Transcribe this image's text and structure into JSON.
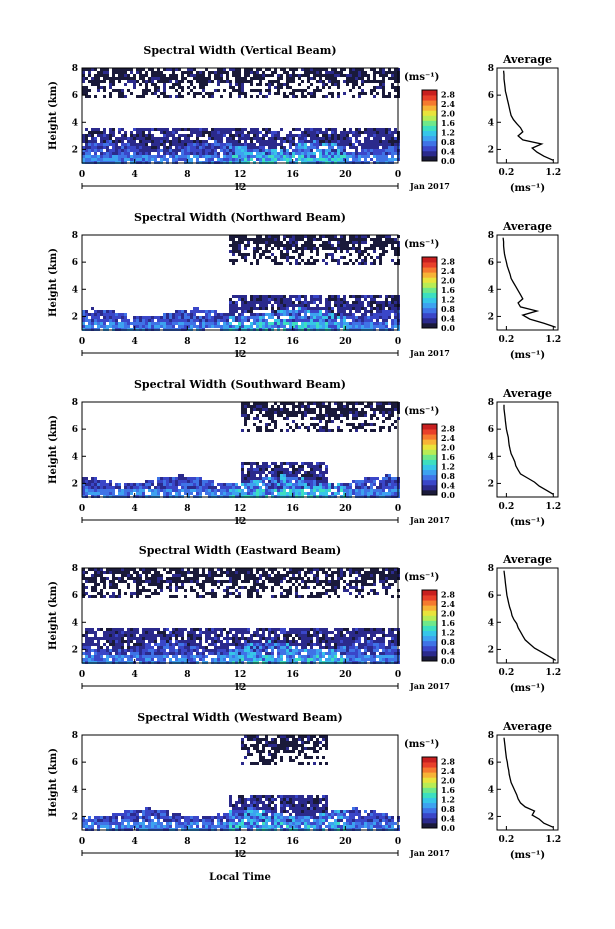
{
  "x_axis_label": "Local Time",
  "colorbar": {
    "unit_label": "(ms⁻¹)",
    "ticks": [
      "0.0",
      "0.4",
      "0.8",
      "1.2",
      "1.6",
      "2.0",
      "2.4",
      "2.8"
    ],
    "range": [
      0,
      3.0
    ],
    "colors": [
      "#1a1a3a",
      "#2b2a8c",
      "#3a46c8",
      "#3f73e6",
      "#3da2f0",
      "#36c6e8",
      "#3ddfc0",
      "#6fe88a",
      "#b8ec55",
      "#e9e33c",
      "#f7b337",
      "#f57a2f",
      "#e8402a",
      "#c81f1f"
    ]
  },
  "chart_data": [
    {
      "type": "heatmap",
      "title": "Spectral Width (Vertical Beam)",
      "ylabel": "Height (km)",
      "xlabel": "",
      "x_ticks": [
        "0",
        "4",
        "8",
        "12",
        "16",
        "20",
        "0"
      ],
      "x_range": [
        0,
        24
      ],
      "y_ticks": [
        "2",
        "4",
        "6",
        "8"
      ],
      "y_range": [
        1,
        8
      ],
      "date_axis": {
        "marker": "12",
        "label": "Jan 2017"
      },
      "profile": {
        "title": "Average",
        "xlabel": "(ms⁻¹)",
        "x_ticks": [
          "0.2",
          "1.2"
        ],
        "x_range": [
          0,
          1.3
        ],
        "height": [
          1.2,
          1.5,
          1.8,
          2.1,
          2.4,
          2.7,
          3.0,
          3.3,
          3.6,
          3.9,
          4.2,
          4.5,
          4.8,
          5.1,
          5.4,
          5.7,
          6.0,
          6.3,
          6.6,
          6.9,
          7.2,
          7.5,
          7.8
        ],
        "width": [
          1.2,
          1.0,
          0.85,
          0.75,
          0.95,
          0.55,
          0.45,
          0.55,
          0.5,
          0.42,
          0.35,
          0.3,
          0.28,
          0.26,
          0.24,
          0.22,
          0.2,
          0.18,
          0.17,
          0.16,
          0.15,
          0.15,
          0.14
        ]
      }
    },
    {
      "type": "heatmap",
      "title": "Spectral Width (Northward Beam)",
      "ylabel": "Height (km)",
      "xlabel": "",
      "x_ticks": [
        "0",
        "4",
        "8",
        "12",
        "16",
        "20",
        "0"
      ],
      "x_range": [
        0,
        24
      ],
      "y_ticks": [
        "2",
        "4",
        "6",
        "8"
      ],
      "y_range": [
        1,
        8
      ],
      "date_axis": {
        "marker": "12",
        "label": "Jan 2017"
      },
      "profile": {
        "title": "Average",
        "xlabel": "(ms⁻¹)",
        "x_ticks": [
          "0.2",
          "1.2"
        ],
        "x_range": [
          0,
          1.3
        ],
        "height": [
          1.2,
          1.5,
          1.8,
          2.1,
          2.4,
          2.7,
          3.0,
          3.3,
          3.6,
          3.9,
          4.2,
          4.5,
          4.8,
          5.1,
          5.4,
          5.7,
          6.0,
          6.3,
          6.6,
          6.9,
          7.2,
          7.5,
          7.8
        ],
        "width": [
          1.25,
          1.0,
          0.7,
          0.55,
          0.85,
          0.5,
          0.45,
          0.55,
          0.5,
          0.45,
          0.4,
          0.35,
          0.3,
          0.28,
          0.25,
          0.22,
          0.2,
          0.18,
          0.16,
          0.15,
          0.14,
          0.14,
          0.13
        ]
      }
    },
    {
      "type": "heatmap",
      "title": "Spectral Width (Southward Beam)",
      "ylabel": "Height (km)",
      "xlabel": "",
      "x_ticks": [
        "0",
        "4",
        "8",
        "12",
        "16",
        "20",
        "0"
      ],
      "x_range": [
        0,
        24
      ],
      "y_ticks": [
        "2",
        "4",
        "6",
        "8"
      ],
      "y_range": [
        1,
        8
      ],
      "date_axis": {
        "marker": "12",
        "label": "Jan 2017"
      },
      "profile": {
        "title": "Average",
        "xlabel": "(ms⁻¹)",
        "x_ticks": [
          "0.2",
          "1.2"
        ],
        "x_range": [
          0,
          1.3
        ],
        "height": [
          1.2,
          1.5,
          1.8,
          2.1,
          2.4,
          2.7,
          3.0,
          3.3,
          3.6,
          3.9,
          4.2,
          4.5,
          4.8,
          5.1,
          5.4,
          5.7,
          6.0,
          6.3,
          6.6,
          6.9,
          7.2,
          7.5,
          7.8
        ],
        "width": [
          1.2,
          1.05,
          0.9,
          0.8,
          0.65,
          0.5,
          0.45,
          0.4,
          0.38,
          0.34,
          0.3,
          0.28,
          0.26,
          0.25,
          0.24,
          0.22,
          0.2,
          0.19,
          0.18,
          0.17,
          0.16,
          0.15,
          0.15
        ]
      }
    },
    {
      "type": "heatmap",
      "title": "Spectral Width (Eastward Beam)",
      "ylabel": "Height (km)",
      "xlabel": "",
      "x_ticks": [
        "0",
        "4",
        "8",
        "12",
        "16",
        "20",
        "0"
      ],
      "x_range": [
        0,
        24
      ],
      "y_ticks": [
        "2",
        "4",
        "6",
        "8"
      ],
      "y_range": [
        1,
        8
      ],
      "date_axis": {
        "marker": "12",
        "label": "Jan 2017"
      },
      "profile": {
        "title": "Average",
        "xlabel": "(ms⁻¹)",
        "x_ticks": [
          "0.2",
          "1.2"
        ],
        "x_range": [
          0,
          1.3
        ],
        "height": [
          1.2,
          1.5,
          1.8,
          2.1,
          2.4,
          2.7,
          3.0,
          3.3,
          3.6,
          3.9,
          4.2,
          4.5,
          4.8,
          5.1,
          5.4,
          5.7,
          6.0,
          6.3,
          6.6,
          6.9,
          7.2,
          7.5,
          7.8
        ],
        "width": [
          1.25,
          1.1,
          0.95,
          0.8,
          0.7,
          0.6,
          0.55,
          0.5,
          0.45,
          0.42,
          0.36,
          0.32,
          0.3,
          0.27,
          0.25,
          0.23,
          0.21,
          0.2,
          0.19,
          0.18,
          0.17,
          0.16,
          0.15
        ]
      }
    },
    {
      "type": "heatmap",
      "title": "Spectral Width (Westward Beam)",
      "ylabel": "Height (km)",
      "xlabel": "Local Time",
      "x_ticks": [
        "0",
        "4",
        "8",
        "12",
        "16",
        "20",
        "0"
      ],
      "x_range": [
        0,
        24
      ],
      "y_ticks": [
        "2",
        "4",
        "6",
        "8"
      ],
      "y_range": [
        1,
        8
      ],
      "date_axis": {
        "marker": "12",
        "label": "Jan 2017"
      },
      "profile": {
        "title": "Average",
        "xlabel": "(ms⁻¹)",
        "x_ticks": [
          "0.2",
          "1.2"
        ],
        "x_range": [
          0,
          1.3
        ],
        "height": [
          1.2,
          1.5,
          1.8,
          2.1,
          2.4,
          2.7,
          3.0,
          3.3,
          3.6,
          3.9,
          4.2,
          4.5,
          4.8,
          5.1,
          5.4,
          5.7,
          6.0,
          6.3,
          6.6,
          6.9,
          7.2,
          7.5,
          7.8
        ],
        "width": [
          1.2,
          1.0,
          0.9,
          0.75,
          0.8,
          0.6,
          0.5,
          0.45,
          0.42,
          0.38,
          0.34,
          0.3,
          0.28,
          0.26,
          0.25,
          0.23,
          0.22,
          0.2,
          0.19,
          0.18,
          0.17,
          0.16,
          0.15
        ]
      }
    }
  ]
}
